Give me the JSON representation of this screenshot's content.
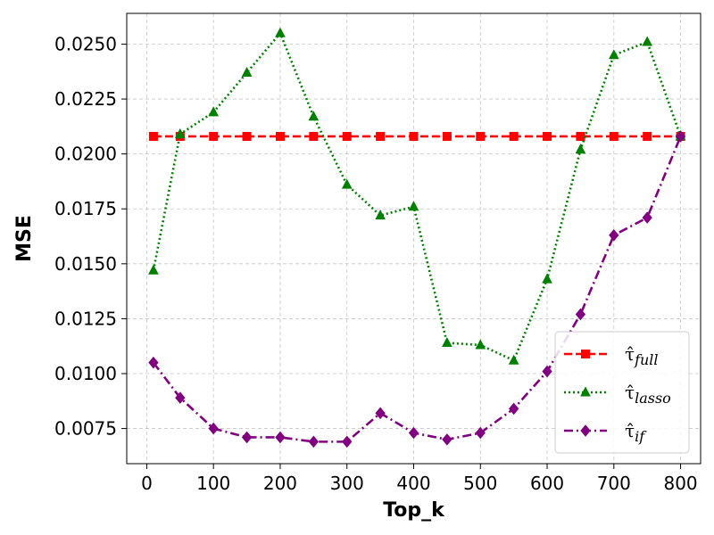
{
  "chart_data": {
    "type": "line",
    "xlabel": "Top_k",
    "ylabel": "MSE",
    "xlim": [
      -30,
      830
    ],
    "ylim": [
      0.0059,
      0.0264
    ],
    "xticks": [
      0,
      100,
      200,
      300,
      400,
      500,
      600,
      700,
      800
    ],
    "xtick_labels": [
      "0",
      "100",
      "200",
      "300",
      "400",
      "500",
      "600",
      "700",
      "800"
    ],
    "yticks": [
      0.0075,
      0.01,
      0.0125,
      0.015,
      0.0175,
      0.02,
      0.0225,
      0.025
    ],
    "ytick_labels": [
      "0.0075",
      "0.0100",
      "0.0125",
      "0.0150",
      "0.0175",
      "0.0200",
      "0.0225",
      "0.0250"
    ],
    "grid": true,
    "legend_position": "bottom-right",
    "x": [
      10,
      50,
      100,
      150,
      200,
      250,
      300,
      350,
      400,
      450,
      500,
      550,
      600,
      650,
      700,
      750,
      800
    ],
    "series": [
      {
        "name": "τ̂",
        "subscript": "full",
        "color": "#ff0000",
        "marker": "square",
        "line_style": "dashed",
        "values": [
          0.0208,
          0.0208,
          0.0208,
          0.0208,
          0.0208,
          0.0208,
          0.0208,
          0.0208,
          0.0208,
          0.0208,
          0.0208,
          0.0208,
          0.0208,
          0.0208,
          0.0208,
          0.0208,
          0.0208
        ]
      },
      {
        "name": "τ̂",
        "subscript": "lasso",
        "color": "#008000",
        "marker": "triangle",
        "line_style": "dotted",
        "values": [
          0.0147,
          0.0209,
          0.0219,
          0.0237,
          0.0255,
          0.0217,
          0.0186,
          0.0172,
          0.0176,
          0.0114,
          0.0113,
          0.0106,
          0.0143,
          0.0202,
          0.0245,
          0.0251,
          0.0208
        ]
      },
      {
        "name": "τ̂",
        "subscript": "if",
        "color": "#800080",
        "marker": "diamond",
        "line_style": "dashdot",
        "values": [
          0.0105,
          0.0089,
          0.0075,
          0.0071,
          0.0071,
          0.0069,
          0.0069,
          0.0082,
          0.0073,
          0.007,
          0.0073,
          0.0084,
          0.0101,
          0.0127,
          0.0163,
          0.0171,
          0.0208
        ]
      }
    ]
  }
}
